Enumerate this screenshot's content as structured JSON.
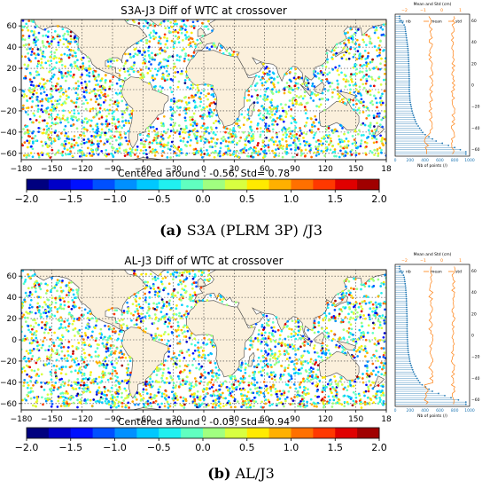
{
  "chart_data": [
    {
      "type": "scatter",
      "title": "S3A-J3 Diff of WTC at crossover",
      "subtitle": "Centered around : -0.56, Std= 0.78",
      "x_ticks": [
        "−180",
        "−150",
        "−120",
        "−90",
        "−60",
        "−30",
        "0",
        "30",
        "60",
        "90",
        "120",
        "150",
        "18"
      ],
      "y_ticks": [
        "60",
        "40",
        "20",
        "0",
        "−20",
        "−40",
        "−60"
      ],
      "xlim": [
        -180,
        180
      ],
      "ylim": [
        -66,
        66
      ],
      "colorbar": {
        "ticks": [
          "−2.0",
          "−1.5",
          "−1.0",
          "−0.5",
          "0.0",
          "0.5",
          "1.0",
          "1.5",
          "2.0"
        ],
        "range": [
          -2.0,
          2.0
        ],
        "colors": [
          "#00007f",
          "#0000c8",
          "#0010ff",
          "#0050ff",
          "#0090ff",
          "#00c8ff",
          "#20f0f0",
          "#60ffc0",
          "#a0ff80",
          "#d8ff40",
          "#ffea00",
          "#ffb000",
          "#ff7000",
          "#ff3800",
          "#e00000",
          "#a00000"
        ]
      },
      "side_panel": {
        "top_label": "Mean and Std (cm)",
        "bottom_label": "Nb of points (/)",
        "legend": [
          "nb",
          "mean",
          "std"
        ],
        "top_ticks": [
          "−2",
          "−1",
          "0",
          "1"
        ],
        "bottom_ticks": [
          "0",
          "200",
          "400",
          "600",
          "800",
          "1000"
        ],
        "y_ticks": [
          "60",
          "40",
          "20",
          "0",
          "−20",
          "−40",
          "−60"
        ],
        "nb_profile": [
          {
            "lat": 62,
            "nb": 60
          },
          {
            "lat": 55,
            "nb": 130
          },
          {
            "lat": 45,
            "nb": 150
          },
          {
            "lat": 35,
            "nb": 170
          },
          {
            "lat": 25,
            "nb": 180
          },
          {
            "lat": 15,
            "nb": 185
          },
          {
            "lat": 5,
            "nb": 190
          },
          {
            "lat": -5,
            "nb": 190
          },
          {
            "lat": -15,
            "nb": 200
          },
          {
            "lat": -25,
            "nb": 230
          },
          {
            "lat": -35,
            "nb": 280
          },
          {
            "lat": -45,
            "nb": 380
          },
          {
            "lat": -52,
            "nb": 550
          },
          {
            "lat": -58,
            "nb": 800
          },
          {
            "lat": -62,
            "nb": 950
          }
        ]
      }
    },
    {
      "type": "scatter",
      "title": "AL-J3 Diff of WTC at crossover",
      "subtitle": "Centered around : -0.05, Std= 0.94",
      "x_ticks": [
        "−180",
        "−150",
        "−120",
        "−90",
        "−60",
        "−30",
        "0",
        "30",
        "60",
        "90",
        "120",
        "150",
        "18"
      ],
      "y_ticks": [
        "60",
        "40",
        "20",
        "0",
        "−20",
        "−40",
        "−60"
      ],
      "xlim": [
        -180,
        180
      ],
      "ylim": [
        -66,
        66
      ],
      "colorbar": {
        "ticks": [
          "−2.0",
          "−1.5",
          "−1.0",
          "−0.5",
          "0.0",
          "0.5",
          "1.0",
          "1.5",
          "2.0"
        ],
        "range": [
          -2.0,
          2.0
        ],
        "colors": [
          "#00007f",
          "#0000c8",
          "#0010ff",
          "#0050ff",
          "#0090ff",
          "#00c8ff",
          "#20f0f0",
          "#60ffc0",
          "#a0ff80",
          "#d8ff40",
          "#ffea00",
          "#ffb000",
          "#ff7000",
          "#ff3800",
          "#e00000",
          "#a00000"
        ]
      },
      "side_panel": {
        "top_label": "Mean and Std (cm)",
        "bottom_label": "Nb of points (/)",
        "legend": [
          "nb",
          "mean",
          "std"
        ],
        "top_ticks": [
          "−2",
          "−1",
          "0",
          "1"
        ],
        "bottom_ticks": [
          "0",
          "200",
          "400",
          "600",
          "800",
          "1000"
        ],
        "y_ticks": [
          "60",
          "40",
          "20",
          "0",
          "−20",
          "−40",
          "−60"
        ],
        "nb_profile": [
          {
            "lat": 62,
            "nb": 60
          },
          {
            "lat": 55,
            "nb": 120
          },
          {
            "lat": 45,
            "nb": 140
          },
          {
            "lat": 35,
            "nb": 150
          },
          {
            "lat": 25,
            "nb": 155
          },
          {
            "lat": 15,
            "nb": 160
          },
          {
            "lat": 5,
            "nb": 160
          },
          {
            "lat": -5,
            "nb": 165
          },
          {
            "lat": -15,
            "nb": 175
          },
          {
            "lat": -25,
            "nb": 200
          },
          {
            "lat": -35,
            "nb": 250
          },
          {
            "lat": -45,
            "nb": 340
          },
          {
            "lat": -52,
            "nb": 500
          },
          {
            "lat": -58,
            "nb": 750
          },
          {
            "lat": -62,
            "nb": 950
          }
        ]
      }
    }
  ],
  "captions": [
    {
      "letter": "(a)",
      "text": " S3A (PLRM 3P) /J3"
    },
    {
      "letter": "(b)",
      "text": " AL/J3"
    }
  ],
  "colors": {
    "land": "#fbf0dc",
    "ocean": "#ffffff",
    "nb_series": "#1f77b4",
    "mean_series": "#ff7f0e",
    "std_series": "#ff7f0e"
  }
}
